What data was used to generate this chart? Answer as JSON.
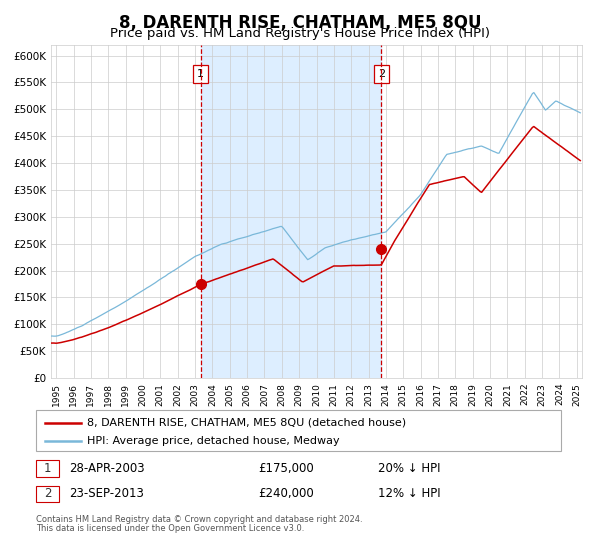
{
  "title": "8, DARENTH RISE, CHATHAM, ME5 8QU",
  "subtitle": "Price paid vs. HM Land Registry's House Price Index (HPI)",
  "title_fontsize": 12,
  "subtitle_fontsize": 9.5,
  "ylim": [
    0,
    620000
  ],
  "yticks": [
    0,
    50000,
    100000,
    150000,
    200000,
    250000,
    300000,
    350000,
    400000,
    450000,
    500000,
    550000,
    600000
  ],
  "ytick_labels": [
    "£0",
    "£50K",
    "£100K",
    "£150K",
    "£200K",
    "£250K",
    "£300K",
    "£350K",
    "£400K",
    "£450K",
    "£500K",
    "£550K",
    "£600K"
  ],
  "xlim_start": 1994.7,
  "xlim_end": 2025.3,
  "xticks": [
    1995,
    1996,
    1997,
    1998,
    1999,
    2000,
    2001,
    2002,
    2003,
    2004,
    2005,
    2006,
    2007,
    2008,
    2009,
    2010,
    2011,
    2012,
    2013,
    2014,
    2015,
    2016,
    2017,
    2018,
    2019,
    2020,
    2021,
    2022,
    2023,
    2024,
    2025
  ],
  "hpi_color": "#7ab8d9",
  "sale_color": "#cc0000",
  "marker_color": "#cc0000",
  "vline_color": "#cc0000",
  "shade_color": "#ddeeff",
  "grid_color": "#cccccc",
  "background_color": "#ffffff",
  "legend_label_sale": "8, DARENTH RISE, CHATHAM, ME5 8QU (detached house)",
  "legend_label_hpi": "HPI: Average price, detached house, Medway",
  "sale1_x": 2003.32,
  "sale1_y": 175000,
  "sale1_label": "1",
  "sale2_x": 2013.73,
  "sale2_y": 240000,
  "sale2_label": "2",
  "annotation1_date": "28-APR-2003",
  "annotation1_price": "£175,000",
  "annotation1_hpi": "20% ↓ HPI",
  "annotation2_date": "23-SEP-2013",
  "annotation2_price": "£240,000",
  "annotation2_hpi": "12% ↓ HPI",
  "footnote1": "Contains HM Land Registry data © Crown copyright and database right 2024.",
  "footnote2": "This data is licensed under the Open Government Licence v3.0."
}
